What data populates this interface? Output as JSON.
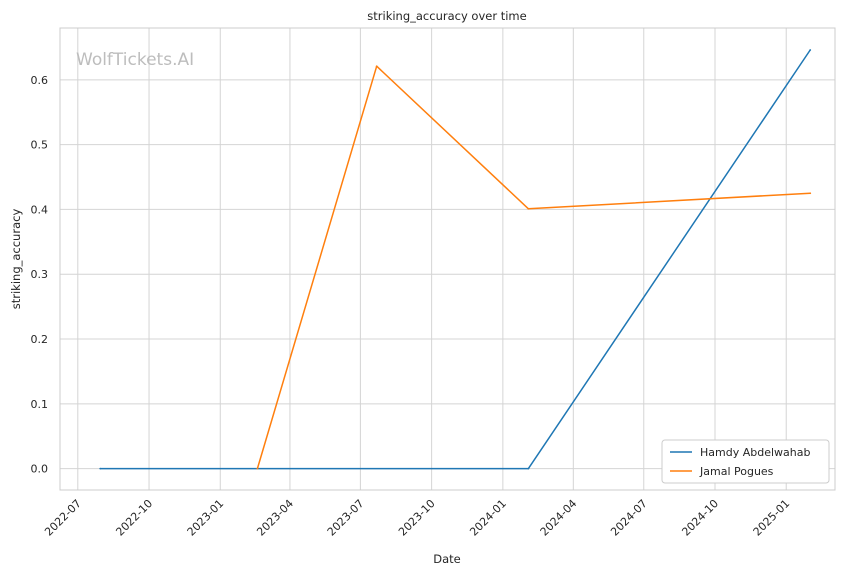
{
  "watermark": "WolfTickets.AI",
  "chart_data": {
    "type": "line",
    "title": "striking_accuracy over time",
    "xlabel": "Date",
    "ylabel": "striking_accuracy",
    "x_ticks": [
      "2022-07",
      "2022-10",
      "2023-01",
      "2023-04",
      "2023-07",
      "2023-10",
      "2024-01",
      "2024-04",
      "2024-07",
      "2024-10",
      "2025-01"
    ],
    "y_ticks": [
      "0.0",
      "0.1",
      "0.2",
      "0.3",
      "0.4",
      "0.5",
      "0.6"
    ],
    "xlim": [
      "2022-06-08",
      "2025-03-05"
    ],
    "ylim": [
      -0.033,
      0.68
    ],
    "grid": true,
    "legend_position": "lower-right",
    "series": [
      {
        "name": "Hamdy Abdelwahab",
        "color": "#1f77b4",
        "points": [
          {
            "x": "2022-07-30",
            "y": 0.0
          },
          {
            "x": "2024-02-03",
            "y": 0.0
          },
          {
            "x": "2025-02-01",
            "y": 0.646
          }
        ]
      },
      {
        "name": "Jamal Pogues",
        "color": "#ff7f0e",
        "points": [
          {
            "x": "2023-02-18",
            "y": 0.0
          },
          {
            "x": "2023-07-22",
            "y": 0.621
          },
          {
            "x": "2024-02-03",
            "y": 0.401
          },
          {
            "x": "2025-02-01",
            "y": 0.425
          }
        ]
      }
    ]
  }
}
